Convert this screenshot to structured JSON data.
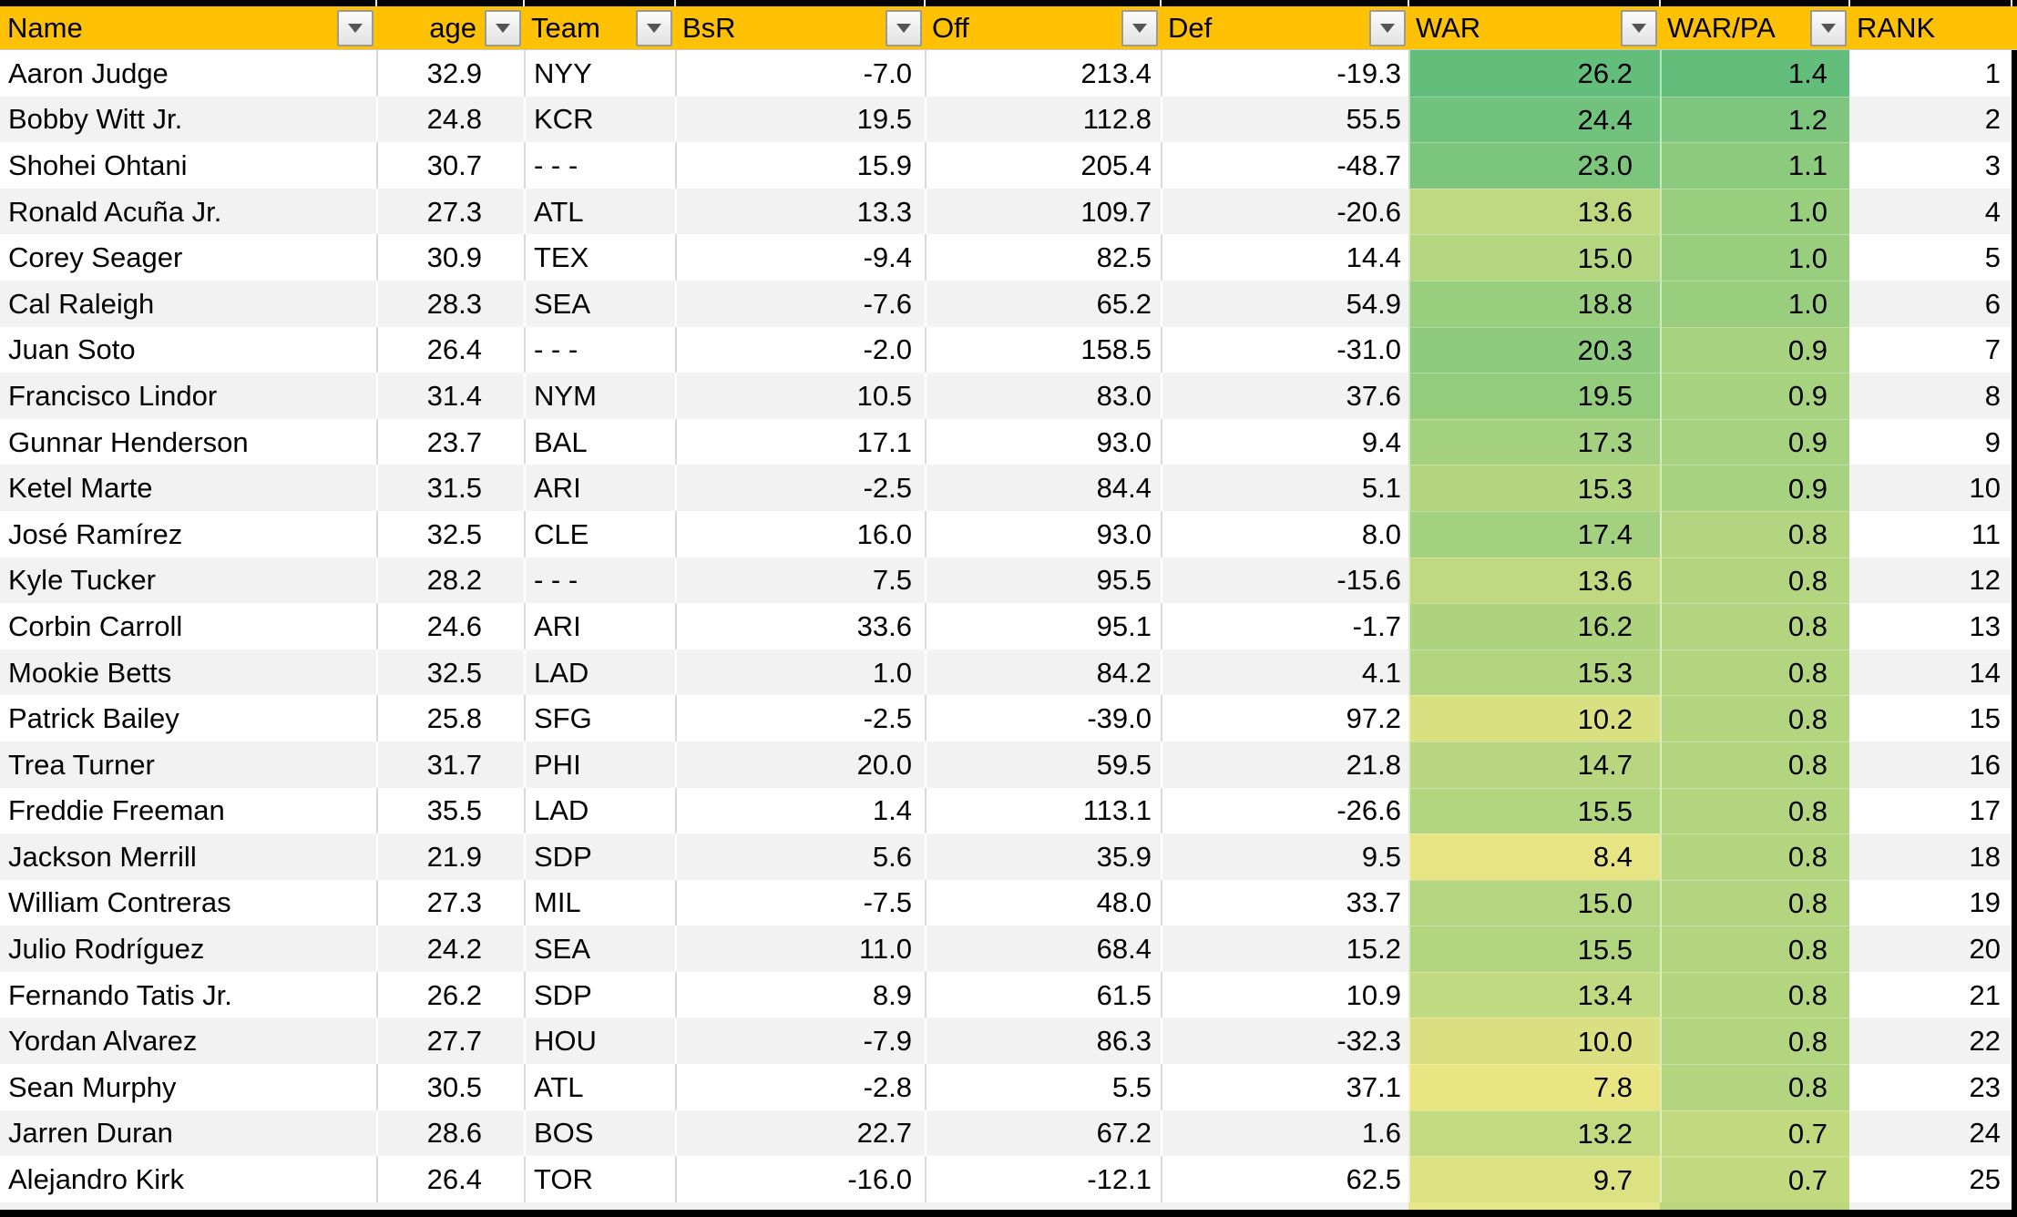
{
  "table": {
    "columns": [
      {
        "key": "name",
        "label": "Name",
        "filter": true
      },
      {
        "key": "age",
        "label": "age",
        "filter": true
      },
      {
        "key": "team",
        "label": "Team",
        "filter": true
      },
      {
        "key": "bsr",
        "label": "BsR",
        "filter": true
      },
      {
        "key": "off",
        "label": "Off",
        "filter": true
      },
      {
        "key": "def",
        "label": "Def",
        "filter": true
      },
      {
        "key": "war",
        "label": "WAR",
        "filter": true
      },
      {
        "key": "war_pa",
        "label": "WAR/PA",
        "filter": true
      },
      {
        "key": "rank",
        "label": "RANK",
        "filter": false
      }
    ],
    "rows": [
      {
        "name": "Aaron Judge",
        "age": "32.9",
        "team": "NYY",
        "bsr": "-7.0",
        "off": "213.4",
        "def": "-19.3",
        "war": "26.2",
        "war_pa": "1.4",
        "rank": "1"
      },
      {
        "name": "Bobby Witt Jr.",
        "age": "24.8",
        "team": "KCR",
        "bsr": "19.5",
        "off": "112.8",
        "def": "55.5",
        "war": "24.4",
        "war_pa": "1.2",
        "rank": "2"
      },
      {
        "name": "Shohei Ohtani",
        "age": "30.7",
        "team": "- - -",
        "bsr": "15.9",
        "off": "205.4",
        "def": "-48.7",
        "war": "23.0",
        "war_pa": "1.1",
        "rank": "3"
      },
      {
        "name": "Ronald Acuña Jr.",
        "age": "27.3",
        "team": "ATL",
        "bsr": "13.3",
        "off": "109.7",
        "def": "-20.6",
        "war": "13.6",
        "war_pa": "1.0",
        "rank": "4"
      },
      {
        "name": "Corey Seager",
        "age": "30.9",
        "team": "TEX",
        "bsr": "-9.4",
        "off": "82.5",
        "def": "14.4",
        "war": "15.0",
        "war_pa": "1.0",
        "rank": "5"
      },
      {
        "name": "Cal Raleigh",
        "age": "28.3",
        "team": "SEA",
        "bsr": "-7.6",
        "off": "65.2",
        "def": "54.9",
        "war": "18.8",
        "war_pa": "1.0",
        "rank": "6"
      },
      {
        "name": "Juan Soto",
        "age": "26.4",
        "team": "- - -",
        "bsr": "-2.0",
        "off": "158.5",
        "def": "-31.0",
        "war": "20.3",
        "war_pa": "0.9",
        "rank": "7"
      },
      {
        "name": "Francisco Lindor",
        "age": "31.4",
        "team": "NYM",
        "bsr": "10.5",
        "off": "83.0",
        "def": "37.6",
        "war": "19.5",
        "war_pa": "0.9",
        "rank": "8"
      },
      {
        "name": "Gunnar Henderson",
        "age": "23.7",
        "team": "BAL",
        "bsr": "17.1",
        "off": "93.0",
        "def": "9.4",
        "war": "17.3",
        "war_pa": "0.9",
        "rank": "9"
      },
      {
        "name": "Ketel Marte",
        "age": "31.5",
        "team": "ARI",
        "bsr": "-2.5",
        "off": "84.4",
        "def": "5.1",
        "war": "15.3",
        "war_pa": "0.9",
        "rank": "10"
      },
      {
        "name": "José Ramírez",
        "age": "32.5",
        "team": "CLE",
        "bsr": "16.0",
        "off": "93.0",
        "def": "8.0",
        "war": "17.4",
        "war_pa": "0.8",
        "rank": "11"
      },
      {
        "name": "Kyle Tucker",
        "age": "28.2",
        "team": "- - -",
        "bsr": "7.5",
        "off": "95.5",
        "def": "-15.6",
        "war": "13.6",
        "war_pa": "0.8",
        "rank": "12"
      },
      {
        "name": "Corbin Carroll",
        "age": "24.6",
        "team": "ARI",
        "bsr": "33.6",
        "off": "95.1",
        "def": "-1.7",
        "war": "16.2",
        "war_pa": "0.8",
        "rank": "13"
      },
      {
        "name": "Mookie Betts",
        "age": "32.5",
        "team": "LAD",
        "bsr": "1.0",
        "off": "84.2",
        "def": "4.1",
        "war": "15.3",
        "war_pa": "0.8",
        "rank": "14"
      },
      {
        "name": "Patrick Bailey",
        "age": "25.8",
        "team": "SFG",
        "bsr": "-2.5",
        "off": "-39.0",
        "def": "97.2",
        "war": "10.2",
        "war_pa": "0.8",
        "rank": "15"
      },
      {
        "name": "Trea Turner",
        "age": "31.7",
        "team": "PHI",
        "bsr": "20.0",
        "off": "59.5",
        "def": "21.8",
        "war": "14.7",
        "war_pa": "0.8",
        "rank": "16"
      },
      {
        "name": "Freddie Freeman",
        "age": "35.5",
        "team": "LAD",
        "bsr": "1.4",
        "off": "113.1",
        "def": "-26.6",
        "war": "15.5",
        "war_pa": "0.8",
        "rank": "17"
      },
      {
        "name": "Jackson Merrill",
        "age": "21.9",
        "team": "SDP",
        "bsr": "5.6",
        "off": "35.9",
        "def": "9.5",
        "war": "8.4",
        "war_pa": "0.8",
        "rank": "18"
      },
      {
        "name": "William Contreras",
        "age": "27.3",
        "team": "MIL",
        "bsr": "-7.5",
        "off": "48.0",
        "def": "33.7",
        "war": "15.0",
        "war_pa": "0.8",
        "rank": "19"
      },
      {
        "name": "Julio Rodríguez",
        "age": "24.2",
        "team": "SEA",
        "bsr": "11.0",
        "off": "68.4",
        "def": "15.2",
        "war": "15.5",
        "war_pa": "0.8",
        "rank": "20"
      },
      {
        "name": "Fernando Tatis Jr.",
        "age": "26.2",
        "team": "SDP",
        "bsr": "8.9",
        "off": "61.5",
        "def": "10.9",
        "war": "13.4",
        "war_pa": "0.8",
        "rank": "21"
      },
      {
        "name": "Yordan Alvarez",
        "age": "27.7",
        "team": "HOU",
        "bsr": "-7.9",
        "off": "86.3",
        "def": "-32.3",
        "war": "10.0",
        "war_pa": "0.8",
        "rank": "22"
      },
      {
        "name": "Sean Murphy",
        "age": "30.5",
        "team": "ATL",
        "bsr": "-2.8",
        "off": "5.5",
        "def": "37.1",
        "war": "7.8",
        "war_pa": "0.8",
        "rank": "23"
      },
      {
        "name": "Jarren Duran",
        "age": "28.6",
        "team": "BOS",
        "bsr": "22.7",
        "off": "67.2",
        "def": "1.6",
        "war": "13.2",
        "war_pa": "0.7",
        "rank": "24"
      },
      {
        "name": "Alejandro Kirk",
        "age": "26.4",
        "team": "TOR",
        "bsr": "-16.0",
        "off": "-12.1",
        "def": "62.5",
        "war": "9.7",
        "war_pa": "0.7",
        "rank": "25"
      }
    ]
  },
  "colors": {
    "header_bg": "#FFC103",
    "band_white": "#FFFFFF",
    "band_gray": "#F2F2F2",
    "scale_low": "#FFEB84",
    "scale_high": "#63BE7B"
  },
  "color_scales": {
    "war": {
      "min": 5.0,
      "max": 26.2
    },
    "war_pa": {
      "min": 0.25,
      "max": 1.4
    }
  },
  "partial_next_row": {
    "plain": "#F2F2F2",
    "war": "#E6E78C",
    "war_pa": "#BCD77E"
  }
}
